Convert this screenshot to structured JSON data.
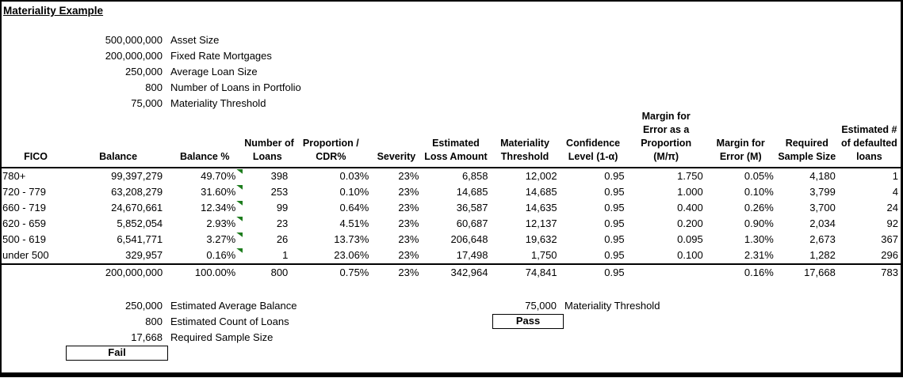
{
  "title": "Materiality Example",
  "colors": {
    "text": "#000000",
    "border": "#000000",
    "triangle_flag": "#1e7d1e",
    "background": "#ffffff"
  },
  "parameters": [
    {
      "value": "500,000,000",
      "label": "Asset Size"
    },
    {
      "value": "200,000,000",
      "label": "Fixed Rate Mortgages"
    },
    {
      "value": "250,000",
      "label": "Average Loan Size"
    },
    {
      "value": "800",
      "label": "Number of Loans in Portfolio"
    },
    {
      "value": "75,000",
      "label": "Materiality Threshold"
    }
  ],
  "table": {
    "headers": [
      "FICO",
      "Balance",
      "Balance %",
      "Number of\nLoans",
      "Proportion /\nCDR%",
      "Severity",
      "Estimated\nLoss Amount",
      "Materiality\nThreshold",
      "Confidence\nLevel (1-α)",
      "Margin for\nError as a\nProportion\n(M/π)",
      "Margin for\nError (M)",
      "Required\nSample Size",
      "Estimated #\nof defaulted\nloans"
    ],
    "rows": [
      [
        "780+",
        "99,397,279",
        "49.70%",
        "398",
        "0.03%",
        "23%",
        "6,858",
        "12,002",
        "0.95",
        "1.750",
        "0.05%",
        "4,180",
        "1"
      ],
      [
        "720 - 779",
        "63,208,279",
        "31.60%",
        "253",
        "0.10%",
        "23%",
        "14,685",
        "14,685",
        "0.95",
        "1.000",
        "0.10%",
        "3,799",
        "4"
      ],
      [
        "660 - 719",
        "24,670,661",
        "12.34%",
        "99",
        "0.64%",
        "23%",
        "36,587",
        "14,635",
        "0.95",
        "0.400",
        "0.26%",
        "3,700",
        "24"
      ],
      [
        "620 - 659",
        "5,852,054",
        "2.93%",
        "23",
        "4.51%",
        "23%",
        "60,687",
        "12,137",
        "0.95",
        "0.200",
        "0.90%",
        "2,034",
        "92"
      ],
      [
        "500 - 619",
        "6,541,771",
        "3.27%",
        "26",
        "13.73%",
        "23%",
        "206,648",
        "19,632",
        "0.95",
        "0.095",
        "1.30%",
        "2,673",
        "367"
      ],
      [
        "under 500",
        "329,957",
        "0.16%",
        "1",
        "23.06%",
        "23%",
        "17,498",
        "1,750",
        "0.95",
        "0.100",
        "2.31%",
        "1,282",
        "296"
      ]
    ],
    "totals": [
      "",
      "200,000,000",
      "100.00%",
      "800",
      "0.75%",
      "23%",
      "342,964",
      "74,841",
      "0.95",
      "",
      "0.16%",
      "17,668",
      "783"
    ],
    "flag_column": "Balance %"
  },
  "summary_left": {
    "items": [
      {
        "value": "250,000",
        "label": "Estimated Average Balance"
      },
      {
        "value": "800",
        "label": "Estimated Count of Loans"
      },
      {
        "value": "17,668",
        "label": "Required Sample Size"
      }
    ],
    "status": "Fail"
  },
  "summary_right": {
    "items": [
      {
        "value": "75,000",
        "label": "Materiality Threshold"
      }
    ],
    "status": "Pass"
  }
}
